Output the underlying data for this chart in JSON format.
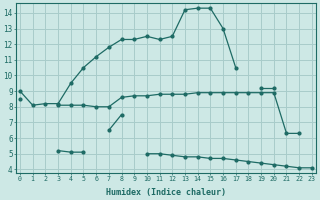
{
  "xlabel": "Humidex (Indice chaleur)",
  "bg_color": "#cde8e5",
  "grid_color": "#a8ccca",
  "line_color": "#1e6b65",
  "x_values": [
    0,
    1,
    2,
    3,
    4,
    5,
    6,
    7,
    8,
    9,
    10,
    11,
    12,
    13,
    14,
    15,
    16,
    17,
    18,
    19,
    20,
    21,
    22,
    23
  ],
  "curve1": [
    9.0,
    8.1,
    8.2,
    8.2,
    9.5,
    10.5,
    11.2,
    11.8,
    12.3,
    12.3,
    12.5,
    12.3,
    12.5,
    14.2,
    14.3,
    14.3,
    13.0,
    10.5,
    null,
    9.2,
    9.2,
    null,
    null,
    null
  ],
  "curve2": [
    8.5,
    null,
    null,
    8.1,
    8.1,
    8.1,
    8.0,
    8.0,
    8.6,
    8.7,
    8.7,
    8.8,
    8.8,
    8.8,
    8.9,
    8.9,
    8.9,
    8.9,
    8.9,
    8.9,
    8.9,
    6.3,
    6.3,
    null
  ],
  "curve3": [
    null,
    null,
    null,
    5.2,
    5.1,
    5.1,
    null,
    6.5,
    7.5,
    null,
    5.0,
    5.0,
    4.9,
    4.8,
    4.8,
    4.7,
    4.7,
    4.6,
    4.5,
    4.4,
    4.3,
    4.2,
    4.1,
    4.1
  ],
  "ylim": [
    3.8,
    14.6
  ],
  "xlim": [
    -0.3,
    23.3
  ],
  "yticks": [
    4,
    5,
    6,
    7,
    8,
    9,
    10,
    11,
    12,
    13,
    14
  ],
  "xticks": [
    0,
    1,
    2,
    3,
    4,
    5,
    6,
    7,
    8,
    9,
    10,
    11,
    12,
    13,
    14,
    15,
    16,
    17,
    18,
    19,
    20,
    21,
    22,
    23
  ]
}
